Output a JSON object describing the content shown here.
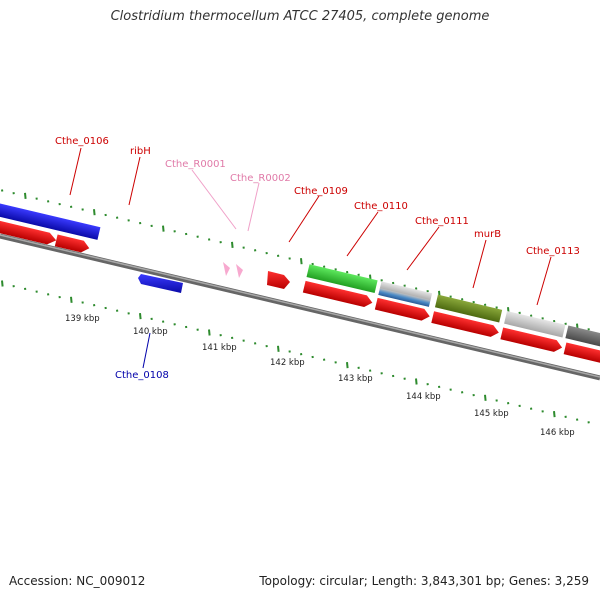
{
  "title": "Clostridium thermocellum ATCC 27405, complete genome",
  "accession": "Accession: NC_009012",
  "topology": "Topology: circular; Length: 3,843,301 bp; Genes: 3,259",
  "colors": {
    "plus_cds": "#1a1ad6",
    "minus_cds": "#e01010",
    "rna": "#f0a6c8",
    "green": "#3ccf3c",
    "olive": "#6b8a1e",
    "light_grey": "#c8c8c8",
    "dark_grey": "#777777",
    "steel_blue": "#4a8ac6",
    "tick": "#2e8b2e",
    "backbone": "#888888"
  },
  "scale_labels": [
    "139 kbp",
    "140 kbp",
    "141 kbp",
    "142 kbp",
    "143 kbp",
    "144 kbp",
    "145 kbp",
    "146 kbp"
  ],
  "gene_labels": [
    {
      "text": "Cthe_0106",
      "color": "#cc0000"
    },
    {
      "text": "ribH",
      "color": "#cc0000"
    },
    {
      "text": "Cthe_R0001",
      "color": "#e07aa8"
    },
    {
      "text": "Cthe_R0002",
      "color": "#e07aa8"
    },
    {
      "text": "Cthe_0109",
      "color": "#cc0000"
    },
    {
      "text": "Cthe_0110",
      "color": "#cc0000"
    },
    {
      "text": "Cthe_0111",
      "color": "#cc0000"
    },
    {
      "text": "murB",
      "color": "#cc0000"
    },
    {
      "text": "Cthe_0113",
      "color": "#cc0000"
    },
    {
      "text": "Cthe_0108",
      "color": "#0000aa"
    }
  ]
}
